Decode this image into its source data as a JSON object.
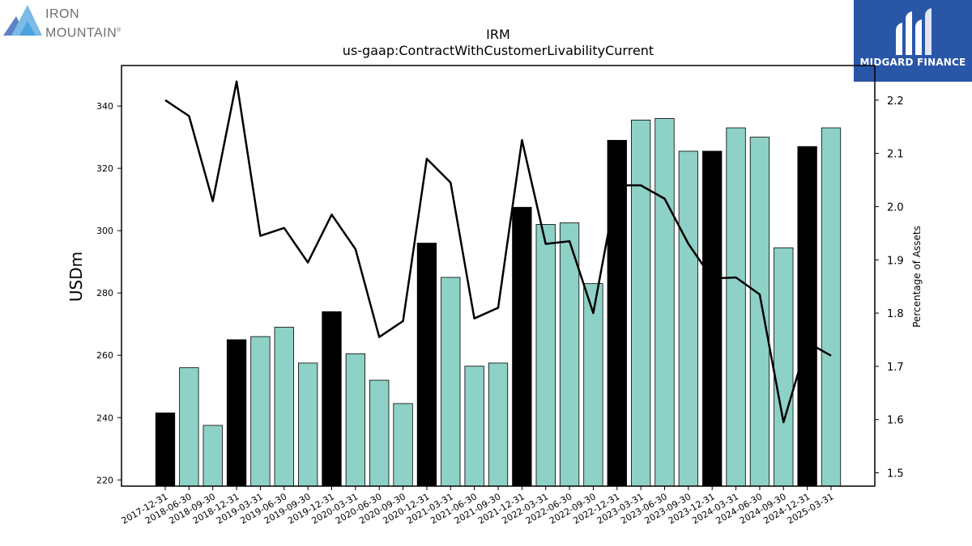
{
  "branding": {
    "left_logo_line1": "IRON",
    "left_logo_line2": "MOUNTAIN",
    "left_logo_mark": "®",
    "right_logo_text": "MIDGARD FINANCE",
    "right_logo_icon": "midgard-m-icon",
    "right_logo_bg": "#2a56a8"
  },
  "chart_data": {
    "type": "bar",
    "title": "IRM",
    "subtitle": "us-gaap:ContractWithCustomerLivabilityCurrent",
    "ylabel": "USDm",
    "y2label": "Percentage of Assets",
    "ylim": [
      218,
      353
    ],
    "y2lim": [
      1.475,
      2.265
    ],
    "yticks": [
      220,
      240,
      260,
      280,
      300,
      320,
      340
    ],
    "y2ticks": [
      1.5,
      1.6,
      1.7,
      1.8,
      1.9,
      2.0,
      2.1,
      2.2
    ],
    "categories": [
      "2017-12-31",
      "2018-06-30",
      "2018-09-30",
      "2018-12-31",
      "2019-03-31",
      "2019-06-30",
      "2019-09-30",
      "2019-12-31",
      "2020-03-31",
      "2020-06-30",
      "2020-09-30",
      "2020-12-31",
      "2021-03-31",
      "2021-06-30",
      "2021-09-30",
      "2021-12-31",
      "2022-03-31",
      "2022-06-30",
      "2022-09-30",
      "2022-12-31",
      "2023-03-31",
      "2023-06-30",
      "2023-09-30",
      "2023-12-31",
      "2024-03-31",
      "2024-06-30",
      "2024-09-30",
      "2024-12-31",
      "2025-03-31"
    ],
    "values": [
      241.5,
      256.0,
      237.5,
      265.0,
      266.0,
      269.0,
      257.5,
      274.0,
      260.5,
      252.0,
      244.5,
      296.0,
      285.0,
      256.5,
      257.5,
      307.5,
      302.0,
      302.5,
      283.0,
      329.0,
      335.5,
      336.0,
      325.5,
      325.5,
      333.0,
      330.0,
      294.5,
      327.0,
      333.0
    ],
    "year_end_flags": [
      true,
      false,
      false,
      true,
      false,
      false,
      false,
      true,
      false,
      false,
      false,
      true,
      false,
      false,
      false,
      true,
      false,
      false,
      false,
      true,
      false,
      false,
      false,
      true,
      false,
      false,
      false,
      true,
      false
    ],
    "line_values": [
      2.2,
      2.17,
      2.01,
      2.235,
      1.945,
      1.96,
      1.895,
      1.985,
      1.92,
      1.755,
      1.785,
      2.09,
      2.045,
      1.79,
      1.81,
      2.125,
      1.93,
      1.935,
      1.8,
      2.04,
      2.04,
      2.015,
      1.93,
      1.865,
      1.867,
      1.835,
      1.595,
      1.745,
      1.72
    ],
    "colors": {
      "bar_default": "#8ed1c6",
      "bar_year_end": "#000000",
      "line": "#000000"
    },
    "grid": false
  }
}
